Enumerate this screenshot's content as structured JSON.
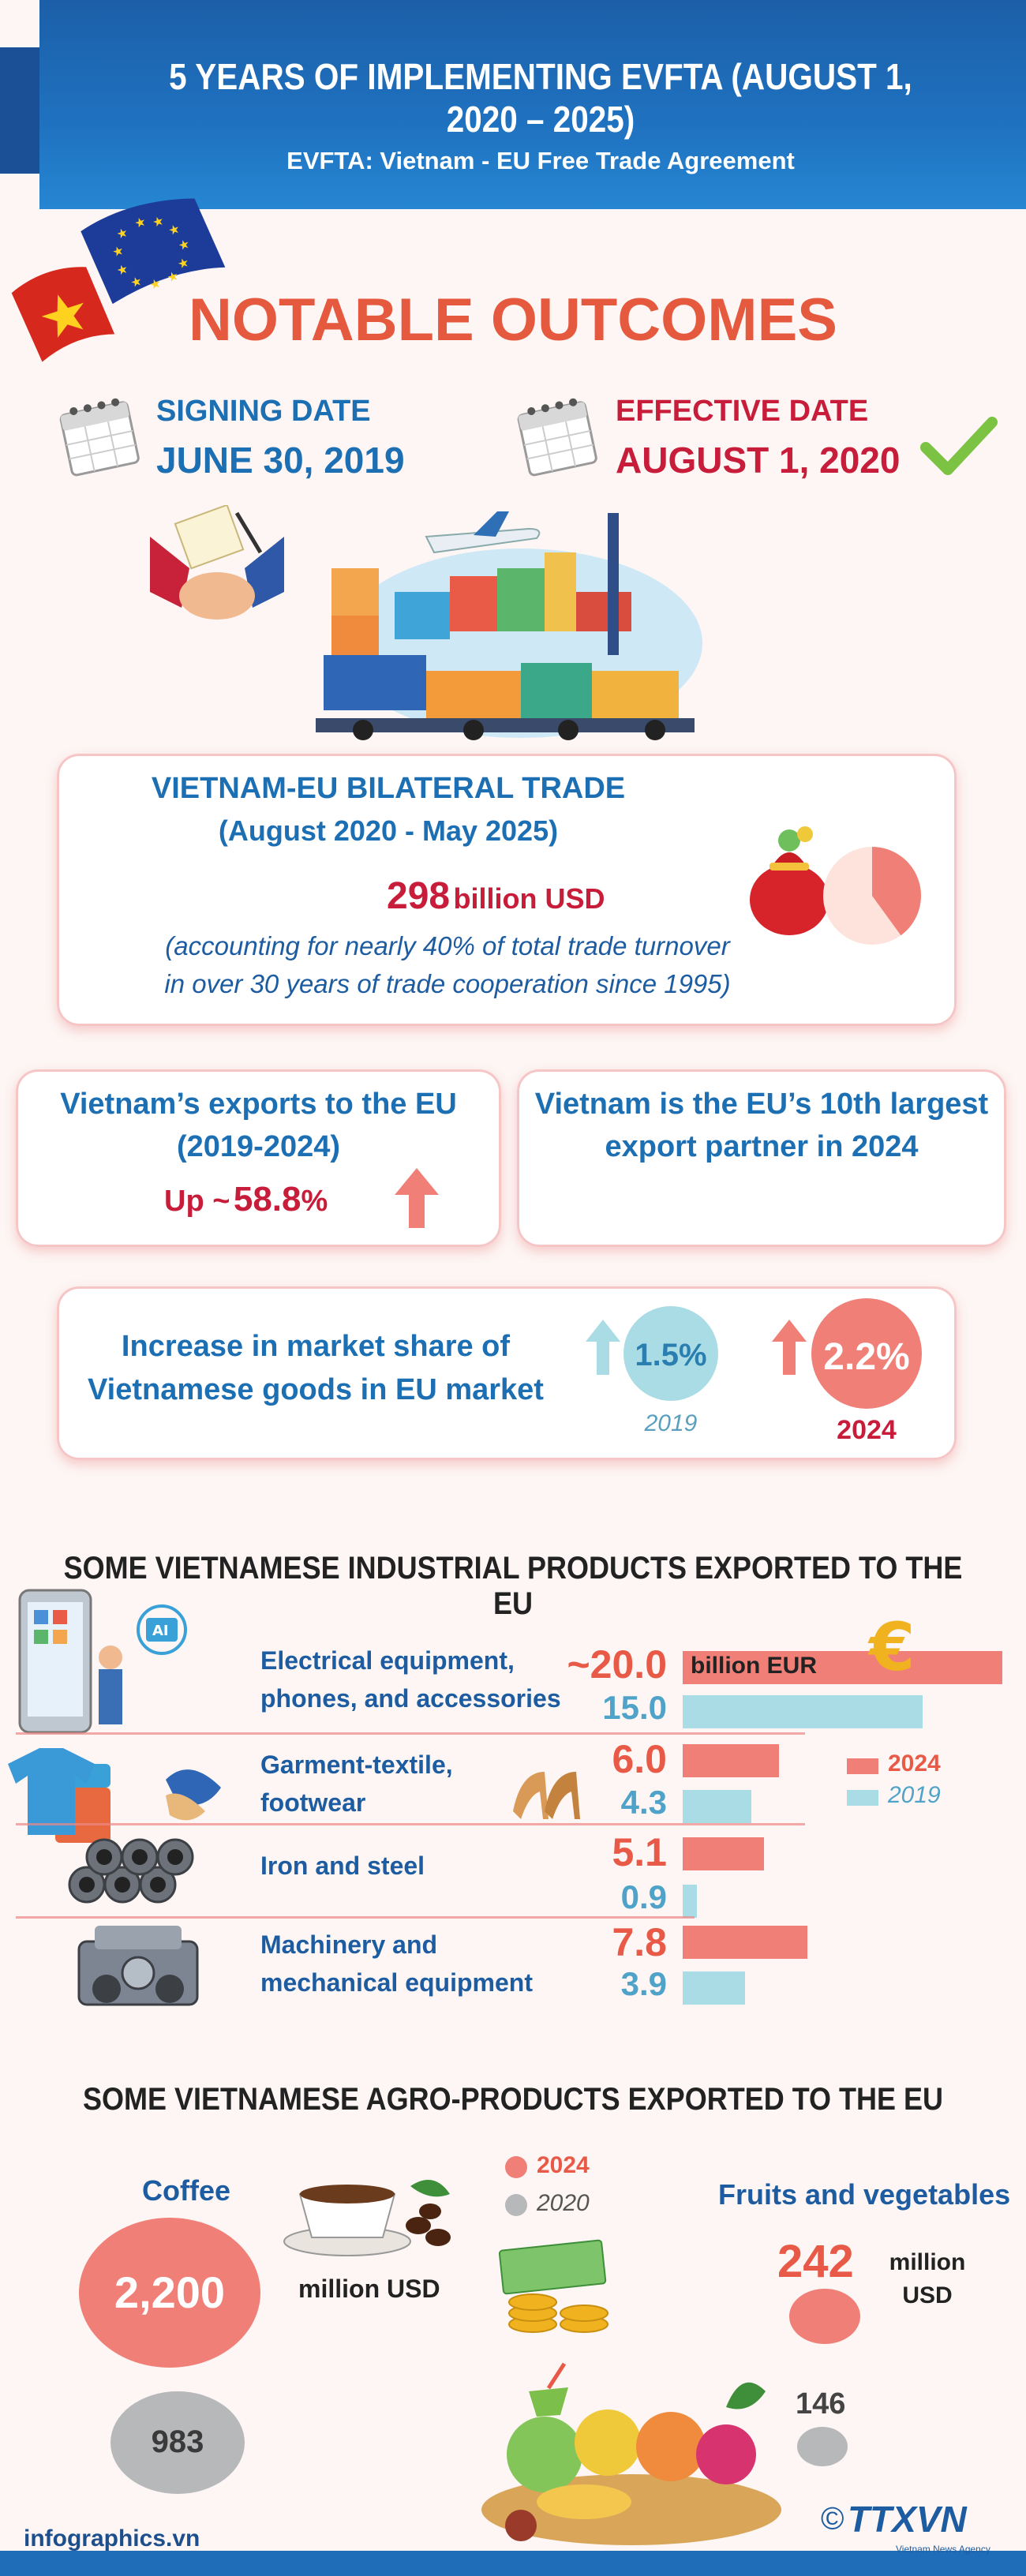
{
  "header": {
    "title": "5 YEARS OF IMPLEMENTING EVFTA (AUGUST 1, 2020 – 2025)",
    "subtitle": "EVFTA: Vietnam - EU Free Trade Agreement"
  },
  "notable": {
    "title": "NOTABLE OUTCOMES",
    "signing_label": "SIGNING DATE",
    "signing_date": "JUNE 30, 2019",
    "effective_label": "EFFECTIVE DATE",
    "effective_date": "AUGUST 1, 2020"
  },
  "bilateral": {
    "title": "VIETNAM-EU BILATERAL TRADE",
    "period": "(August 2020 - May 2025)",
    "value": "298",
    "unit": "billion USD",
    "note_line1": "(accounting for nearly 40% of total trade turnover",
    "note_line2": "in over 30 years of trade cooperation since 1995)",
    "pie_share": 0.4
  },
  "exports": {
    "title_line1": "Vietnam’s exports to the EU",
    "title_line2": "(2019-2024)",
    "up_prefix": "Up ~",
    "up_value": "58.8",
    "up_unit": "%"
  },
  "partner": {
    "line1": "Vietnam is the EU’s 10th largest",
    "line2": "export partner in 2024"
  },
  "market_share": {
    "line1": "Increase in market share of",
    "line2": "Vietnamese goods in EU market",
    "value_2019": "1.5%",
    "year_2019": "2019",
    "value_2024": "2.2%",
    "year_2024": "2024"
  },
  "industrial": {
    "title": "SOME VIETNAMESE INDUSTRIAL PRODUCTS EXPORTED TO THE EU",
    "unit": "billion EUR",
    "legend_2024": "2024",
    "legend_2019": "2019",
    "products": [
      {
        "name_line1": "Electrical equipment,",
        "name_line2": "phones, and accessories",
        "v2024_label": "~20.0",
        "v2024": 20.0,
        "v2019_label": "15.0",
        "v2019": 15.0
      },
      {
        "name_line1": "Garment-textile,",
        "name_line2": "footwear",
        "v2024_label": "6.0",
        "v2024": 6.0,
        "v2019_label": "4.3",
        "v2019": 4.3
      },
      {
        "name_line1": "Iron and steel",
        "name_line2": "",
        "v2024_label": "5.1",
        "v2024": 5.1,
        "v2019_label": "0.9",
        "v2019": 0.9
      },
      {
        "name_line1": "Machinery and",
        "name_line2": "mechanical equipment",
        "v2024_label": "7.8",
        "v2024": 7.8,
        "v2019_label": "3.9",
        "v2019": 3.9
      }
    ]
  },
  "agro": {
    "title": "SOME VIETNAMESE AGRO-PRODUCTS EXPORTED TO THE EU",
    "legend_2024": "2024",
    "legend_2020": "2020",
    "coffee_label": "Coffee",
    "coffee_2024": "2,200",
    "coffee_2020": "983",
    "coffee_unit": "million USD",
    "fruit_label": "Fruits and vegetables",
    "fruit_2024": "242",
    "fruit_2020": "146",
    "fruit_unit_line1": "million",
    "fruit_unit_line2": "USD"
  },
  "footer": {
    "site": "infographics.vn",
    "brand": "TTXVN",
    "brand_sub": "Vietnam News Agency"
  },
  "colors": {
    "accent_red": "#e55a3f",
    "blue": "#1d6fb3",
    "bar_2024": "#f08077",
    "bar_2019": "#a9dce5"
  }
}
